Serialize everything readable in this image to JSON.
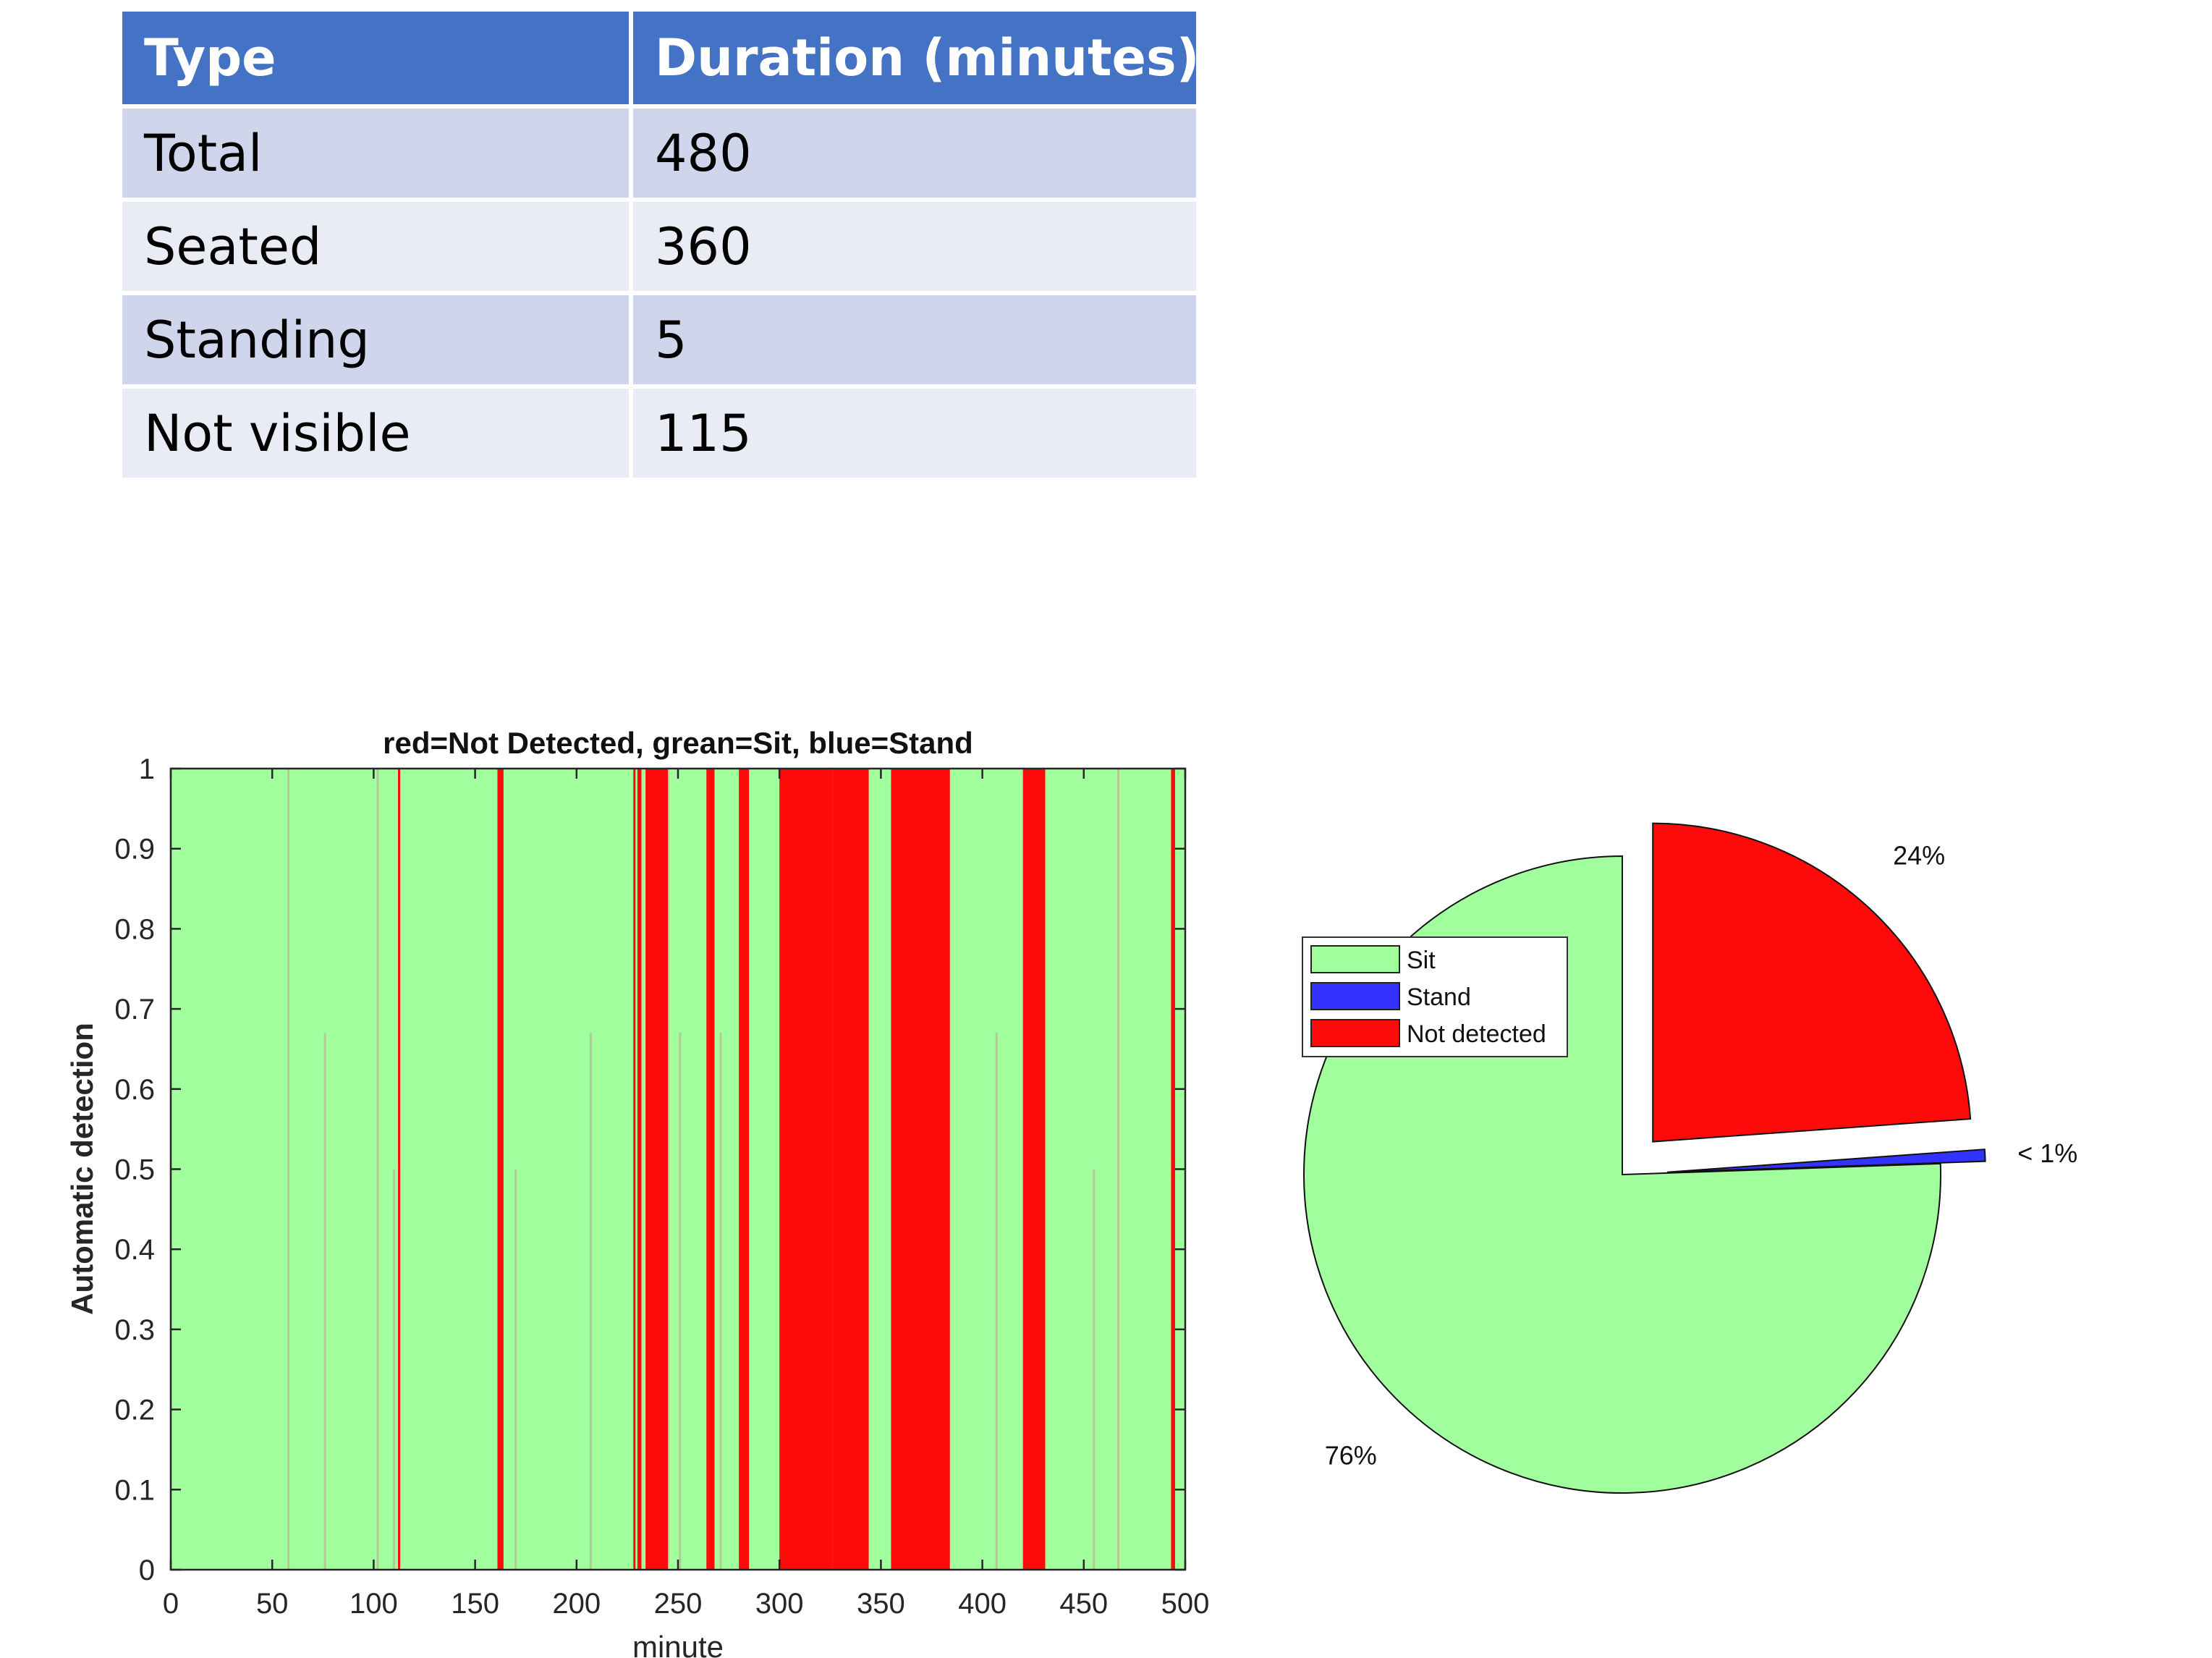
{
  "table": {
    "headers": [
      "Type",
      "Duration (minutes)"
    ],
    "rows": [
      [
        "Total",
        "480"
      ],
      [
        "Seated",
        "360"
      ],
      [
        "Standing",
        "5"
      ],
      [
        "Not visible",
        "115"
      ]
    ]
  },
  "chart_data": [
    {
      "type": "bar",
      "title": "red=Not Detected, grean=Sit, blue=Stand",
      "xlabel": "minute",
      "ylabel": "Automatic detection",
      "xlim": [
        0,
        500
      ],
      "ylim": [
        0,
        1
      ],
      "xticks": [
        "0",
        "50",
        "100",
        "150",
        "200",
        "250",
        "300",
        "350",
        "400",
        "450",
        "500"
      ],
      "yticks": [
        "0",
        "0.1",
        "0.2",
        "0.3",
        "0.4",
        "0.5",
        "0.6",
        "0.7",
        "0.8",
        "0.9",
        "1"
      ],
      "grid": false,
      "background_class": "Sit",
      "colors": {
        "Sit": "#a1ff9e",
        "Stand": "#3333ff",
        "Not detected": "#ff0a0a"
      },
      "not_detected_intervals": [
        [
          112,
          113
        ],
        [
          161,
          164
        ],
        [
          228,
          229
        ],
        [
          230,
          232
        ],
        [
          234,
          245
        ],
        [
          264,
          268
        ],
        [
          280,
          285
        ],
        [
          300,
          326
        ],
        [
          326,
          344
        ],
        [
          355,
          384
        ],
        [
          420,
          431
        ],
        [
          493,
          495
        ]
      ],
      "faint_marks": [
        {
          "x": 58,
          "y_top": 1.0
        },
        {
          "x": 76,
          "y_top": 0.67
        },
        {
          "x": 102,
          "y_top": 1.0
        },
        {
          "x": 110,
          "y_top": 0.5
        },
        {
          "x": 170,
          "y_top": 0.5
        },
        {
          "x": 207,
          "y_top": 0.67
        },
        {
          "x": 245,
          "y_top": 1.0
        },
        {
          "x": 251,
          "y_top": 0.67
        },
        {
          "x": 271,
          "y_top": 0.67
        },
        {
          "x": 407,
          "y_top": 0.67
        },
        {
          "x": 455,
          "y_top": 0.5
        },
        {
          "x": 467,
          "y_top": 1.0
        }
      ]
    },
    {
      "type": "pie",
      "slices": [
        {
          "name": "Sit",
          "value": 76,
          "label": "76%",
          "color": "#a1ff9e",
          "exploded": false
        },
        {
          "name": "Stand",
          "value": 0.6,
          "label": "< 1%",
          "color": "#3333ff",
          "exploded": true
        },
        {
          "name": "Not detected",
          "value": 24,
          "label": "24%",
          "color": "#ff0a0a",
          "exploded": true
        }
      ],
      "legend": {
        "position": "top-left",
        "entries": [
          "Sit",
          "Stand",
          "Not detected"
        ]
      }
    }
  ]
}
